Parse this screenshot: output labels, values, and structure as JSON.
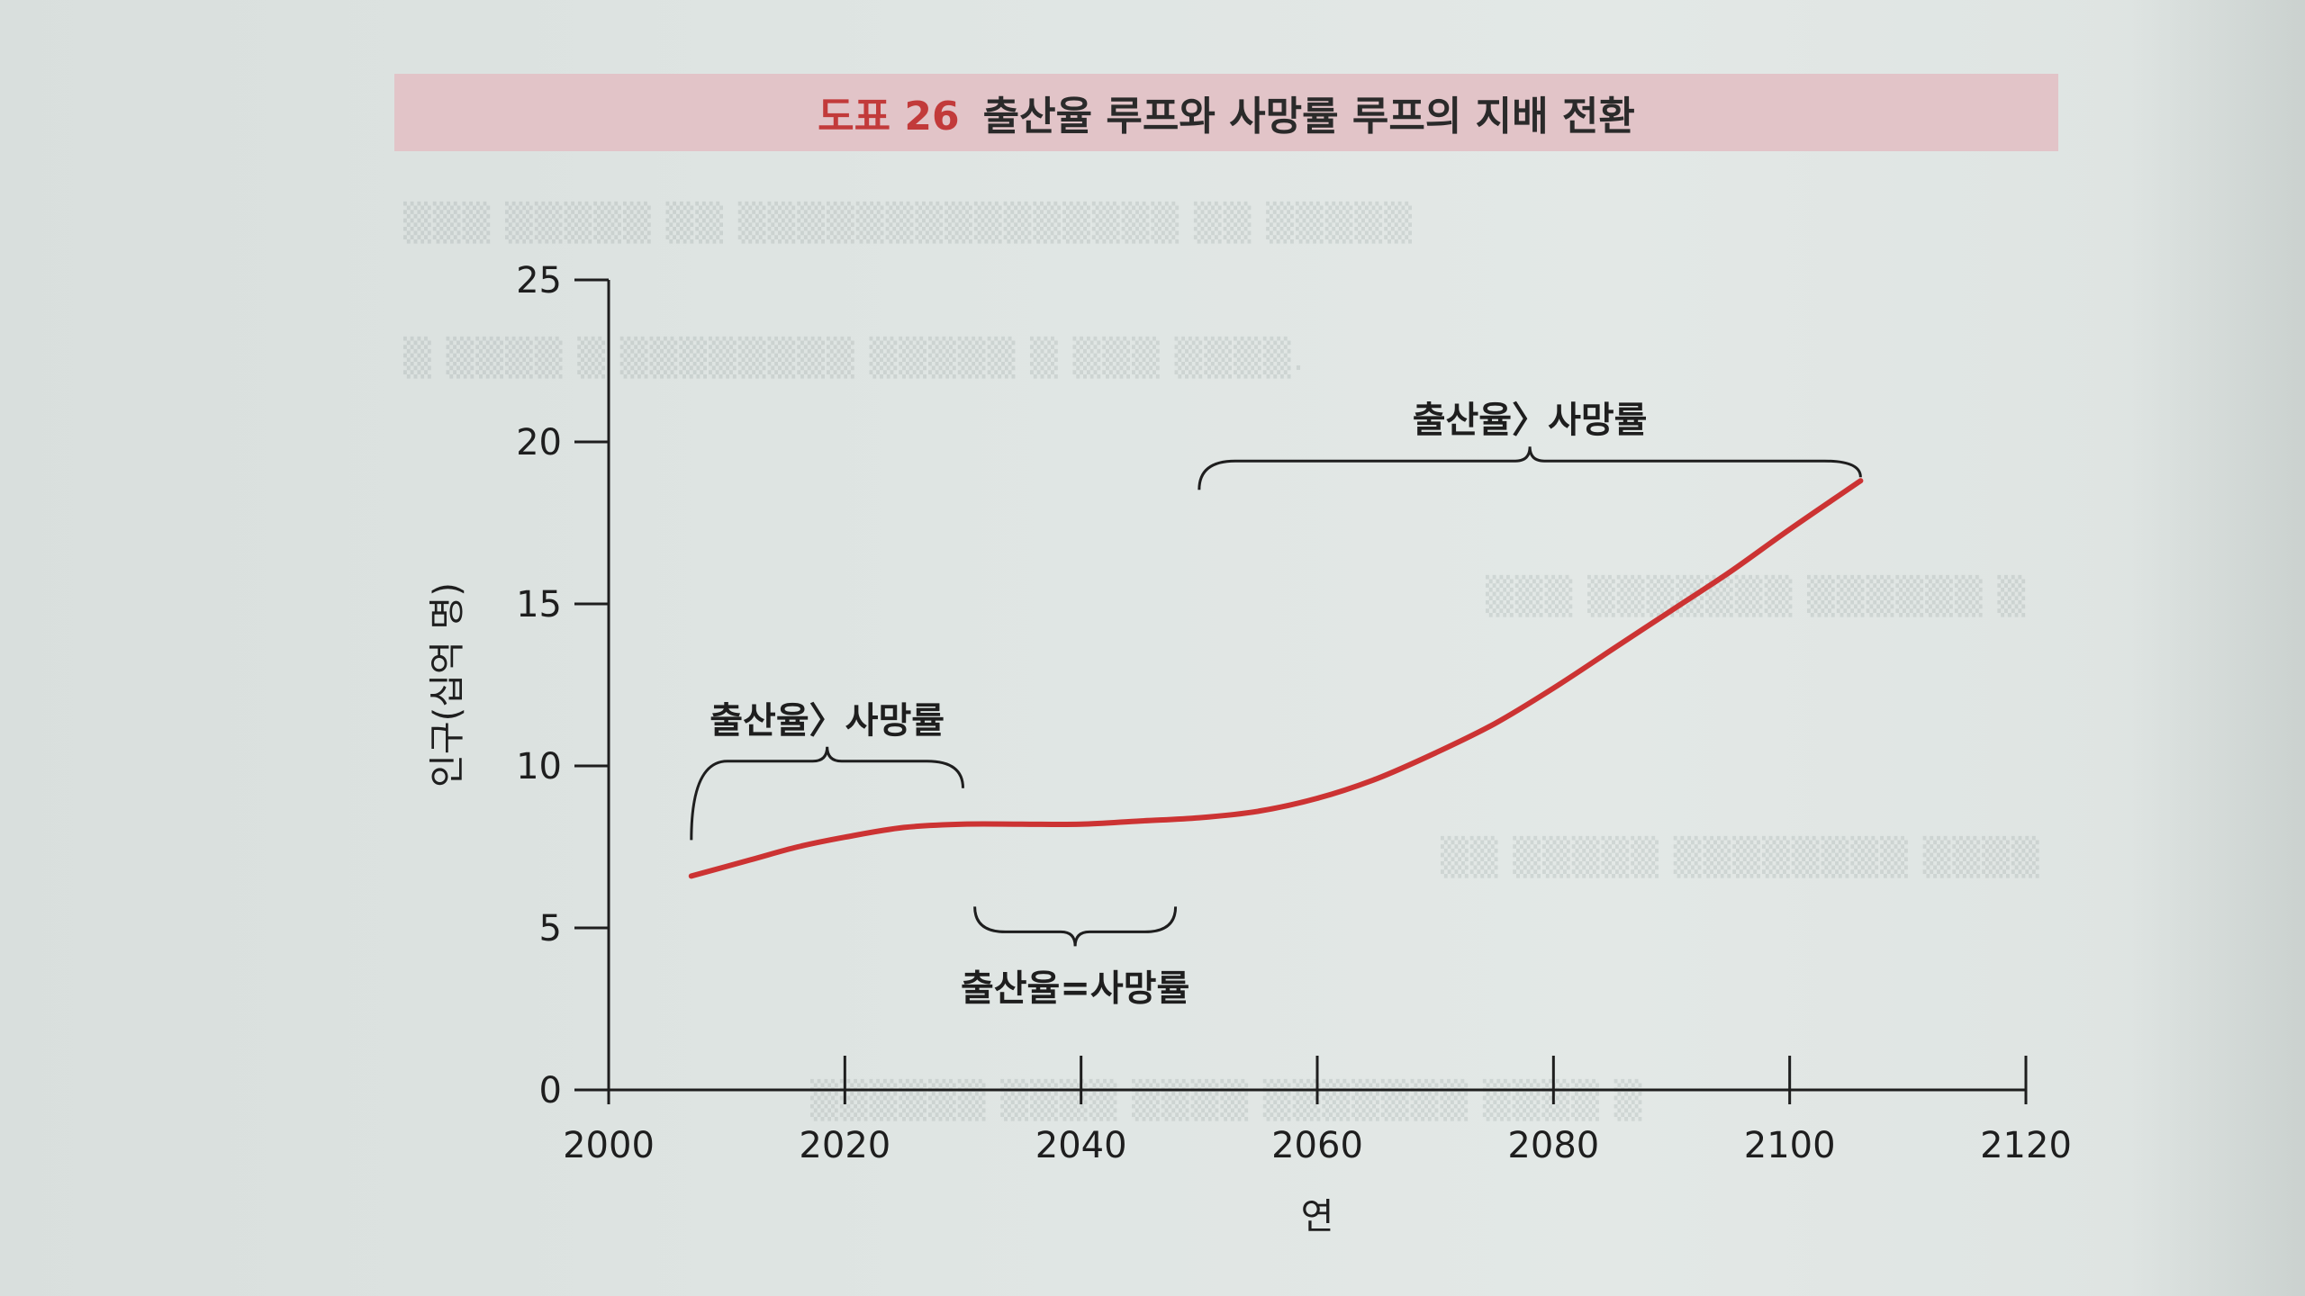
{
  "figure": {
    "label": "도표 26",
    "title": "출산율 루프와 사망률 루프의 지배 전환"
  },
  "chart_data": {
    "type": "line",
    "xlabel": "연",
    "ylabel": "인구(십억 명)",
    "xlim": [
      2000,
      2120
    ],
    "ylim": [
      0,
      25
    ],
    "x_ticks": [
      "2000",
      "2020",
      "2040",
      "2060",
      "2080",
      "2100",
      "2120"
    ],
    "y_ticks": [
      "0",
      "5",
      "10",
      "15",
      "20",
      "25"
    ],
    "grid": false,
    "series": [
      {
        "color": "#cc3333",
        "points": [
          [
            2007,
            6.6
          ],
          [
            2012,
            7.1
          ],
          [
            2016,
            7.5
          ],
          [
            2020,
            7.8
          ],
          [
            2025,
            8.1
          ],
          [
            2030,
            8.2
          ],
          [
            2035,
            8.2
          ],
          [
            2040,
            8.2
          ],
          [
            2045,
            8.3
          ],
          [
            2050,
            8.4
          ],
          [
            2055,
            8.6
          ],
          [
            2060,
            9.0
          ],
          [
            2065,
            9.6
          ],
          [
            2070,
            10.4
          ],
          [
            2075,
            11.3
          ],
          [
            2080,
            12.4
          ],
          [
            2085,
            13.6
          ],
          [
            2090,
            14.8
          ],
          [
            2095,
            16.0
          ],
          [
            2100,
            17.3
          ],
          [
            2106,
            18.8
          ]
        ]
      }
    ],
    "annotations": [
      {
        "text": "출산율〉사망률",
        "x_range": [
          2007,
          2030
        ],
        "position": "above"
      },
      {
        "text": "출산율=사망률",
        "x_range": [
          2031,
          2048
        ],
        "position": "below"
      },
      {
        "text": "출산율〉사망률",
        "x_range": [
          2050,
          2106
        ],
        "position": "above"
      }
    ]
  }
}
